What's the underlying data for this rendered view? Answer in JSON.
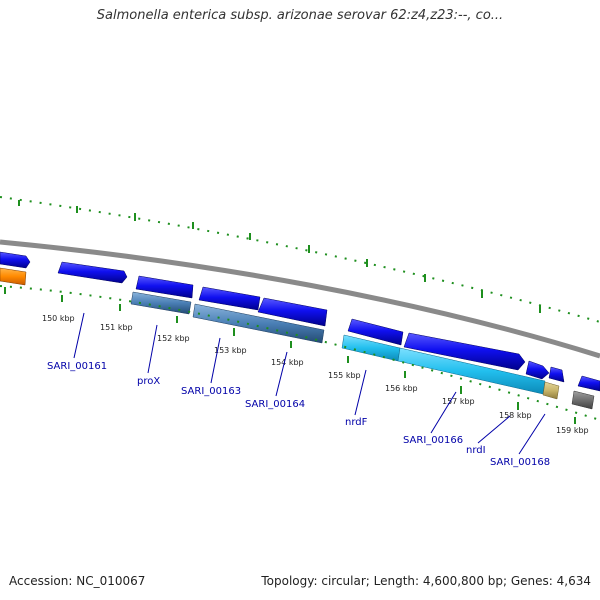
{
  "header": {
    "title": "Salmonella enterica subsp. arizonae serovar 62:z4,z23:--, co..."
  },
  "footer": {
    "accession": "Accession: NC_010067",
    "topology": "Topology: circular; Length: 4,600,800 bp; Genes: 4,634"
  },
  "map": {
    "kbp_labels": [
      "150 kbp",
      "151 kbp",
      "152 kbp",
      "153 kbp",
      "154 kbp",
      "155 kbp",
      "156 kbp",
      "157 kbp",
      "158 kbp",
      "159 kbp"
    ],
    "gene_labels": [
      "SARI_00161",
      "proX",
      "SARI_00163",
      "SARI_00164",
      "nrdF",
      "SARI_00166",
      "nrdI",
      "SARI_00168"
    ],
    "colors": {
      "cds_blue": "#0a0ae6",
      "steel_blue": "#4a7fb5",
      "cyan": "#22bfee",
      "orange": "#ff8a00",
      "tan": "#c8b46a",
      "gray": "#707070",
      "tick_green": "#1e8f1e",
      "label_blue": "#0000a8"
    }
  }
}
